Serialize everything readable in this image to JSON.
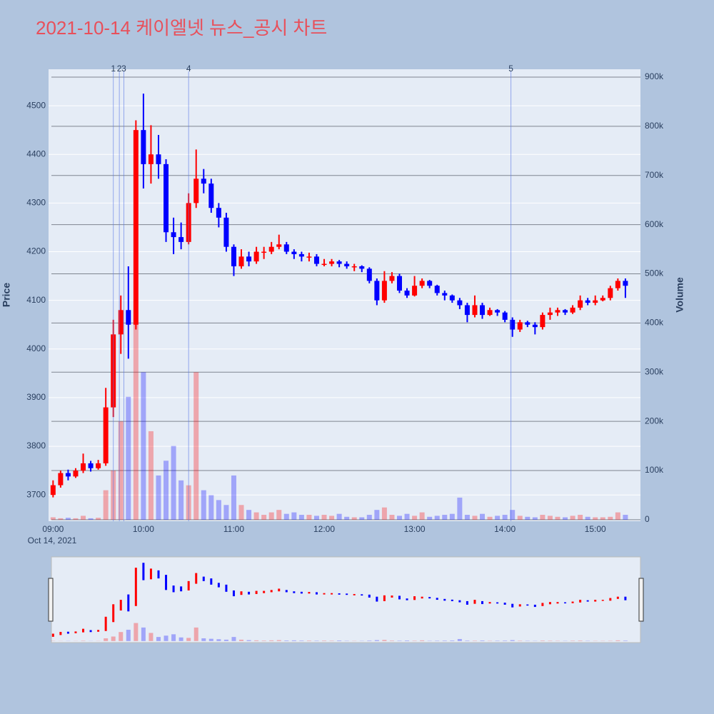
{
  "chart_data": {
    "type": "candlestick",
    "title": "2021-10-14 케이엘넷 뉴스_공시 차트",
    "y_label": "Price",
    "y2_label": "Volume",
    "x_date_label": "Oct 14, 2021",
    "x": [
      "09:00",
      "09:05",
      "09:10",
      "09:15",
      "09:20",
      "09:25",
      "09:30",
      "09:35",
      "09:40",
      "09:45",
      "09:50",
      "09:55",
      "10:00",
      "10:05",
      "10:10",
      "10:15",
      "10:20",
      "10:25",
      "10:30",
      "10:35",
      "10:40",
      "10:45",
      "10:50",
      "10:55",
      "11:00",
      "11:05",
      "11:10",
      "11:15",
      "11:20",
      "11:25",
      "11:30",
      "11:35",
      "11:40",
      "11:45",
      "11:50",
      "11:55",
      "12:00",
      "12:05",
      "12:10",
      "12:15",
      "12:20",
      "12:25",
      "12:30",
      "12:35",
      "12:40",
      "12:45",
      "12:50",
      "12:55",
      "13:00",
      "13:05",
      "13:10",
      "13:15",
      "13:20",
      "13:25",
      "13:30",
      "13:35",
      "13:40",
      "13:45",
      "13:50",
      "13:55",
      "14:00",
      "14:05",
      "14:10",
      "14:15",
      "14:20",
      "14:25",
      "14:30",
      "14:35",
      "14:40",
      "14:45",
      "14:50",
      "14:55",
      "15:00",
      "15:05",
      "15:10",
      "15:15",
      "15:20"
    ],
    "open": [
      3700,
      3720,
      3745,
      3738,
      3750,
      3765,
      3755,
      3765,
      3880,
      4030,
      4080,
      4050,
      4450,
      4380,
      4400,
      4380,
      4240,
      4230,
      4220,
      4300,
      4350,
      4340,
      4290,
      4270,
      4210,
      4170,
      4190,
      4180,
      4200,
      4200,
      4210,
      4215,
      4200,
      4195,
      4190,
      4190,
      4175,
      4175,
      4180,
      4175,
      4170,
      4170,
      4165,
      4140,
      4100,
      4140,
      4150,
      4120,
      4110,
      4130,
      4140,
      4130,
      4115,
      4110,
      4100,
      4090,
      4070,
      4090,
      4070,
      4080,
      4075,
      4060,
      4040,
      4055,
      4050,
      4045,
      4070,
      4075,
      4080,
      4075,
      4085,
      4100,
      4095,
      4100,
      4105,
      4125,
      4140
    ],
    "high": [
      3730,
      3750,
      3752,
      3755,
      3785,
      3770,
      3772,
      3920,
      4060,
      4110,
      4170,
      4470,
      4525,
      4460,
      4440,
      4390,
      4270,
      4260,
      4320,
      4410,
      4370,
      4350,
      4300,
      4280,
      4215,
      4205,
      4200,
      4210,
      4210,
      4220,
      4235,
      4220,
      4205,
      4200,
      4198,
      4195,
      4185,
      4185,
      4183,
      4180,
      4175,
      4172,
      4168,
      4145,
      4160,
      4158,
      4155,
      4125,
      4150,
      4145,
      4142,
      4132,
      4120,
      4112,
      4105,
      4095,
      4110,
      4095,
      4085,
      4082,
      4078,
      4065,
      4060,
      4058,
      4055,
      4075,
      4085,
      4085,
      4082,
      4090,
      4110,
      4105,
      4110,
      4110,
      4130,
      4145,
      4145
    ],
    "low": [
      3695,
      3715,
      3730,
      3735,
      3745,
      3748,
      3752,
      3760,
      3860,
      3990,
      3980,
      4040,
      4330,
      4340,
      4350,
      4220,
      4195,
      4205,
      4215,
      4290,
      4320,
      4280,
      4250,
      4200,
      4150,
      4165,
      4170,
      4175,
      4185,
      4195,
      4205,
      4195,
      4185,
      4180,
      4180,
      4170,
      4170,
      4170,
      4168,
      4165,
      4160,
      4158,
      4135,
      4090,
      4095,
      4135,
      4115,
      4105,
      4108,
      4125,
      4125,
      4110,
      4100,
      4095,
      4082,
      4055,
      4065,
      4062,
      4068,
      4068,
      4055,
      4025,
      4035,
      4045,
      4030,
      4040,
      4060,
      4068,
      4070,
      4072,
      4080,
      4090,
      4090,
      4098,
      4100,
      4120,
      4105
    ],
    "close": [
      3720,
      3745,
      3738,
      3750,
      3765,
      3755,
      3765,
      3880,
      4030,
      4080,
      4050,
      4450,
      4380,
      4400,
      4380,
      4240,
      4230,
      4220,
      4300,
      4350,
      4340,
      4290,
      4270,
      4210,
      4170,
      4190,
      4180,
      4200,
      4200,
      4210,
      4215,
      4200,
      4195,
      4190,
      4190,
      4175,
      4175,
      4180,
      4175,
      4170,
      4170,
      4165,
      4140,
      4100,
      4140,
      4150,
      4120,
      4110,
      4130,
      4140,
      4130,
      4115,
      4110,
      4100,
      4090,
      4070,
      4090,
      4070,
      4080,
      4075,
      4060,
      4040,
      4055,
      4050,
      4045,
      4070,
      4075,
      4080,
      4075,
      4085,
      4100,
      4095,
      4100,
      4105,
      4125,
      4140,
      4130
    ],
    "volume": [
      5000,
      3000,
      4000,
      3000,
      8000,
      3000,
      4000,
      60000,
      100000,
      200000,
      250000,
      400000,
      300000,
      180000,
      90000,
      120000,
      150000,
      80000,
      70000,
      300000,
      60000,
      50000,
      40000,
      30000,
      90000,
      30000,
      20000,
      15000,
      10000,
      15000,
      20000,
      12000,
      15000,
      10000,
      10000,
      8000,
      10000,
      8000,
      12000,
      6000,
      5000,
      5000,
      10000,
      20000,
      25000,
      10000,
      8000,
      12000,
      8000,
      15000,
      6000,
      8000,
      10000,
      12000,
      45000,
      10000,
      8000,
      12000,
      6000,
      8000,
      10000,
      20000,
      8000,
      6000,
      5000,
      10000,
      8000,
      6000,
      5000,
      8000,
      10000,
      6000,
      5000,
      5000,
      6000,
      15000,
      10000
    ],
    "increasing_color": "#ff0000",
    "decreasing_color": "#0000ff",
    "xlim": [
      "08:57",
      "15:30"
    ],
    "xticks": [
      "09:00",
      "10:00",
      "11:00",
      "12:00",
      "13:00",
      "14:00",
      "15:00"
    ],
    "ylim": [
      3646,
      4575
    ],
    "yticks": [
      3700,
      3800,
      3900,
      4000,
      4100,
      4200,
      4300,
      4400,
      4500
    ],
    "y2lim": [
      -3000,
      916000
    ],
    "y2ticks": [
      0,
      {
        "value": 100000,
        "label": "100k"
      },
      {
        "value": 200000,
        "label": "200k"
      },
      {
        "value": 300000,
        "label": "300k"
      },
      {
        "value": 400000,
        "label": "400k"
      },
      {
        "value": 500000,
        "label": "500k"
      },
      {
        "value": 600000,
        "label": "600k"
      },
      {
        "value": 700000,
        "label": "700k"
      },
      {
        "value": 800000,
        "label": "800k"
      },
      {
        "value": 900000,
        "label": "900k"
      }
    ],
    "grid": true,
    "annotations": [
      {
        "x": "09:40",
        "label": "1"
      },
      {
        "x": "09:44",
        "label": "2"
      },
      {
        "x": "09:47",
        "label": "3"
      },
      {
        "x": "10:30",
        "label": "4"
      },
      {
        "x": "14:04",
        "label": "5"
      }
    ]
  }
}
